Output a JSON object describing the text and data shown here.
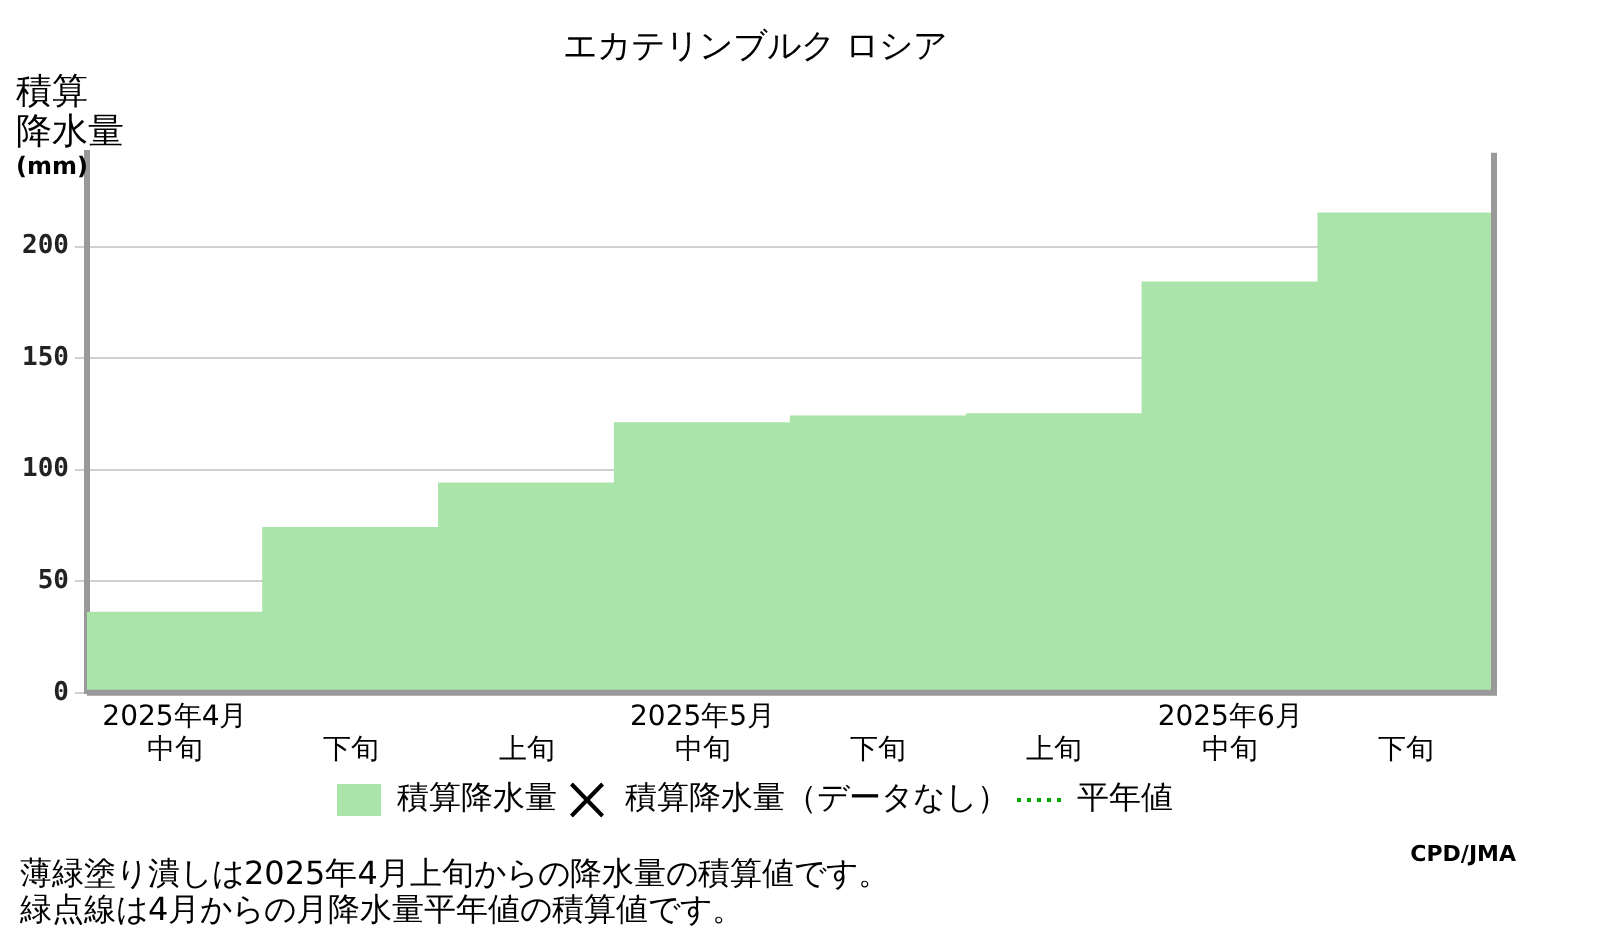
{
  "chart_data": {
    "type": "bar",
    "title": "エカテリンブルク ロシア",
    "ylabel": "積算降水量(mm)",
    "categories": [
      "2025年4月中旬",
      "下旬",
      "上旬",
      "2025年5月中旬",
      "下旬",
      "上旬",
      "2025年6月中旬",
      "下旬"
    ],
    "series": [
      {
        "name": "積算降水量",
        "color": "#aae4aa",
        "values": [
          36,
          74,
          94,
          121,
          124,
          125,
          184,
          215
        ]
      },
      {
        "name": "積算降水量（データなし）",
        "type": "scatter",
        "color": "#000000",
        "marker": "cross",
        "values": [
          null,
          null,
          null,
          null,
          null,
          null,
          null,
          null
        ]
      },
      {
        "name": "平年値",
        "type": "line",
        "color": "#00aa00",
        "line_style": "dotted",
        "values": [
          null,
          null,
          null,
          null,
          null,
          null,
          null,
          null
        ]
      }
    ],
    "ylim": [
      0,
      242
    ],
    "yticks": [
      0,
      50,
      100,
      150,
      200
    ],
    "grid": "y",
    "legend": "bottom",
    "annotations": [
      "CPD/JMA",
      "薄緑塗り潰しは2025年4月上旬からの降水量の積算値です。",
      "緑点線は4月からの月降水量平年値の積算値です。"
    ]
  }
}
